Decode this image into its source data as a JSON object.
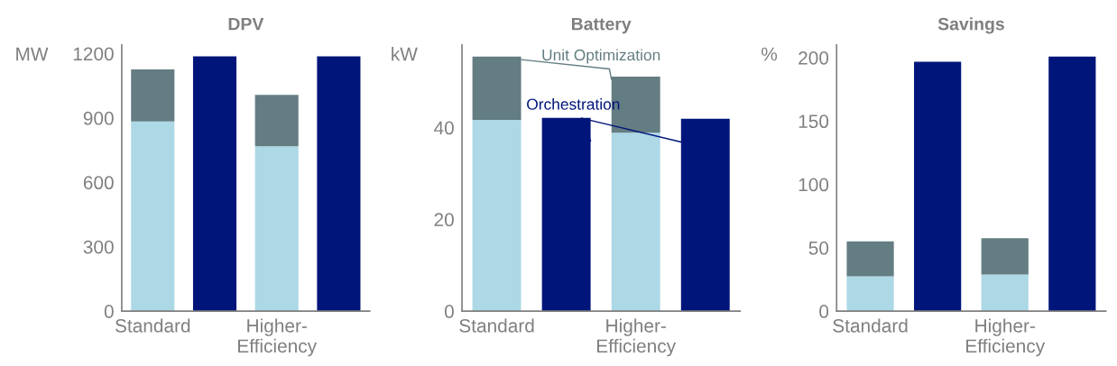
{
  "chart_data": [
    {
      "type": "bar",
      "title": "DPV",
      "ylabel": "MW",
      "categories": [
        "Standard",
        null,
        "Higher-Efficiency",
        null
      ],
      "stacked": true,
      "ylim": [
        0,
        1240
      ],
      "yticks": [
        0,
        300,
        600,
        900,
        1200
      ],
      "series": [
        {
          "color": "#add8e6",
          "values": [
            884,
            null,
            768,
            null
          ]
        },
        {
          "color": "#647d82",
          "values": [
            242,
            null,
            240,
            null
          ]
        },
        {
          "color": "#00157a",
          "values": [
            null,
            1187,
            null,
            1187
          ]
        }
      ]
    },
    {
      "type": "bar",
      "title": "Battery",
      "ylabel": "kW",
      "categories": [
        "Standard",
        null,
        "Higher-Efficiency",
        null
      ],
      "stacked": true,
      "ylim": [
        0,
        58
      ],
      "yticks": [
        0,
        20,
        40
      ],
      "series": [
        {
          "color": "#add8e6",
          "values": [
            41.7,
            null,
            38.9,
            null
          ]
        },
        {
          "name": "Unit Optimization",
          "color": "#647d82",
          "values": [
            13.8,
            null,
            12.2,
            null
          ]
        },
        {
          "name": "Orchestration",
          "color": "#00157a",
          "values": [
            null,
            42.1,
            null,
            41.9
          ]
        }
      ]
    },
    {
      "type": "bar",
      "title": "Savings",
      "ylabel": "%",
      "categories": [
        "Standard",
        null,
        "Higher-Efficiency",
        null
      ],
      "stacked": true,
      "ylim": [
        0,
        210
      ],
      "yticks": [
        0,
        50,
        100,
        150,
        200
      ],
      "series": [
        {
          "color": "#add8e6",
          "values": [
            27.5,
            null,
            28.8,
            null
          ]
        },
        {
          "color": "#647d82",
          "values": [
            27.5,
            null,
            28.7,
            null
          ]
        },
        {
          "color": "#00157a",
          "values": [
            null,
            196.8,
            null,
            200.8
          ]
        }
      ]
    }
  ]
}
